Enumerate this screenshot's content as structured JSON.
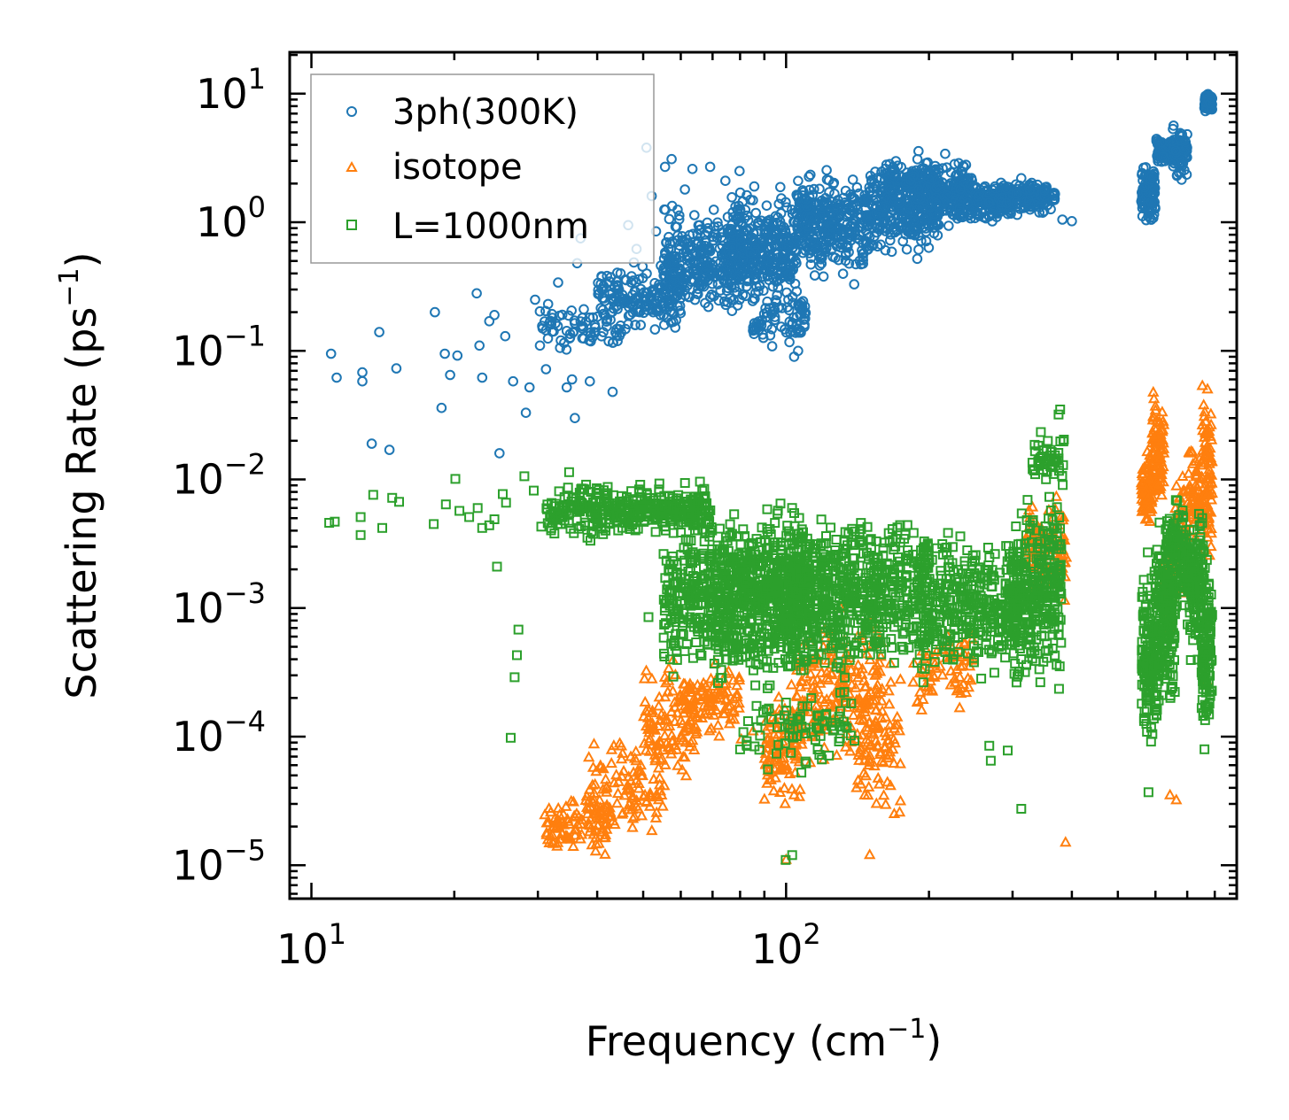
{
  "chart_data": {
    "type": "scatter",
    "xscale": "log",
    "yscale": "log",
    "xlim": [
      9,
      890
    ],
    "ylim": [
      5.5e-06,
      21
    ],
    "xlabel": "Frequency (cm",
    "xlabel_sup": "−1",
    "xlabel_end": ")",
    "ylabel": "Scattering Rate (ps",
    "ylabel_sup": "−1",
    "ylabel_end": ")",
    "x_ticks": [
      {
        "value": 10,
        "base": "10",
        "exp": "1"
      },
      {
        "value": 100,
        "base": "10",
        "exp": "2"
      }
    ],
    "y_ticks": [
      {
        "value": 10,
        "base": "10",
        "exp": "1"
      },
      {
        "value": 1,
        "base": "10",
        "exp": "0"
      },
      {
        "value": 0.1,
        "base": "10",
        "exp": "−1"
      },
      {
        "value": 0.01,
        "base": "10",
        "exp": "−2"
      },
      {
        "value": 0.001,
        "base": "10",
        "exp": "−3"
      },
      {
        "value": 0.0001,
        "base": "10",
        "exp": "−4"
      },
      {
        "value": 1e-05,
        "base": "10",
        "exp": "−5"
      }
    ],
    "legend_position": "top-left",
    "series": [
      {
        "name": "3ph(300K)",
        "marker": "circle",
        "color": "#1f77b4",
        "points": [
          [
            11,
            0.095
          ],
          [
            11.3,
            0.062
          ],
          [
            12.8,
            0.068
          ],
          [
            12.8,
            0.058
          ],
          [
            13.4,
            0.019
          ],
          [
            13.9,
            0.14
          ],
          [
            14.6,
            0.017
          ],
          [
            15.1,
            0.073
          ],
          [
            18.2,
            0.2
          ],
          [
            18.8,
            0.036
          ],
          [
            19.1,
            0.095
          ],
          [
            19.6,
            0.065
          ],
          [
            20.3,
            0.092
          ],
          [
            22.3,
            0.28
          ],
          [
            22.6,
            0.11
          ],
          [
            22.9,
            0.062
          ],
          [
            23.7,
            0.17
          ],
          [
            24.3,
            0.19
          ],
          [
            24.9,
            0.016
          ],
          [
            25.6,
            0.13
          ],
          [
            26.6,
            0.058
          ],
          [
            28.3,
            0.033
          ],
          [
            28.8,
            0.052
          ],
          [
            29.6,
            0.25
          ],
          [
            30.3,
            0.11
          ],
          [
            31.2,
            0.072
          ],
          [
            33.1,
            0.34
          ],
          [
            34.5,
            0.052
          ],
          [
            35.4,
            0.06
          ],
          [
            35.9,
            0.03
          ],
          [
            36.3,
            0.48
          ],
          [
            36.9,
            0.75
          ],
          [
            38.6,
            0.058
          ],
          [
            41.2,
            0.14
          ],
          [
            43.1,
            0.048
          ],
          [
            44.8,
            0.4
          ],
          [
            46.5,
            0.95
          ],
          [
            48.4,
            0.62
          ],
          [
            50.8,
            3.8
          ],
          [
            52.1,
            1.6
          ],
          [
            53.2,
            0.85
          ],
          [
            55.6,
            2.7
          ],
          [
            57.4,
            3.1
          ],
          [
            58.9,
            0.92
          ],
          [
            61.2,
            1.8
          ],
          [
            63.5,
            2.6
          ],
          [
            65.1,
            0.4
          ],
          [
            69.2,
            2.7
          ],
          [
            74.5,
            2.1
          ],
          [
            79.8,
            2.5
          ],
          [
            85.7,
            1.9
          ],
          [
            91.3,
            0.38
          ],
          [
            104,
            0.09
          ],
          [
            106,
            0.1
          ],
          [
            110,
            1.5
          ],
          [
            148,
            0.7
          ],
          [
            189,
            0.52
          ],
          [
            220,
            0.94
          ],
          [
            313,
            2.2
          ],
          [
            382,
            1.05
          ],
          [
            400,
            1.02
          ]
        ],
        "bands": [
          {
            "x": [
              30,
              45
            ],
            "y": [
              0.09,
              0.25
            ],
            "n": 70
          },
          {
            "x": [
              40,
              60
            ],
            "y": [
              0.12,
              0.6
            ],
            "n": 170
          },
          {
            "x": [
              55,
              80
            ],
            "y": [
              0.15,
              1.6
            ],
            "n": 280
          },
          {
            "x": [
              75,
              105
            ],
            "y": [
              0.2,
              2.1
            ],
            "n": 330
          },
          {
            "x": [
              85,
              110
            ],
            "y": [
              0.09,
              0.35
            ],
            "n": 80
          },
          {
            "x": [
              105,
              150
            ],
            "y": [
              0.3,
              3.0
            ],
            "n": 340
          },
          {
            "x": [
              150,
              210
            ],
            "y": [
              0.5,
              3.5
            ],
            "n": 300
          },
          {
            "x": [
              160,
              250
            ],
            "y": [
              1.0,
              3.8
            ],
            "n": 210
          },
          {
            "x": [
              205,
              300
            ],
            "y": [
              0.9,
              2.3
            ],
            "n": 220
          },
          {
            "x": [
              280,
              370
            ],
            "y": [
              1.1,
              2.2
            ],
            "n": 160
          },
          {
            "x": [
              560,
              600
            ],
            "y": [
              0.9,
              3.2
            ],
            "n": 100
          },
          {
            "x": [
              600,
              650
            ],
            "y": [
              2.5,
              5.0
            ],
            "n": 60
          },
          {
            "x": [
              650,
              700
            ],
            "y": [
              2.0,
              6.0
            ],
            "n": 80
          },
          {
            "x": [
              760,
              790
            ],
            "y": [
              7.0,
              10.5
            ],
            "n": 60
          }
        ]
      },
      {
        "name": "isotope",
        "marker": "triangle",
        "color": "#ff7f0e",
        "points": [
          [
            58.3,
            0.00013
          ],
          [
            61.2,
            0.00011
          ],
          [
            66.1,
            0.00015
          ],
          [
            72.3,
            0.0001
          ],
          [
            80.5,
            9.5e-05
          ],
          [
            85.2,
            0.00011
          ],
          [
            100,
            1.1e-05
          ],
          [
            104,
            3.5e-05
          ],
          [
            150,
            1.2e-05
          ],
          [
            155,
            3e-05
          ],
          [
            169,
            2.5e-05
          ],
          [
            193,
            0.00016
          ],
          [
            388,
            1.5e-05
          ],
          [
            644,
            3.5e-05
          ],
          [
            664,
            3.2e-05
          ],
          [
            770,
            0.00027
          ]
        ],
        "bands": [
          {
            "x": [
              31,
              42
            ],
            "y": [
              1e-05,
              4e-05
            ],
            "n": 90
          },
          {
            "x": [
              38,
              55
            ],
            "y": [
              1e-05,
              0.00013
            ],
            "n": 120
          },
          {
            "x": [
              50,
              65
            ],
            "y": [
              3e-05,
              0.00055
            ],
            "n": 110
          },
          {
            "x": [
              60,
              80
            ],
            "y": [
              8e-05,
              0.00045
            ],
            "n": 90
          },
          {
            "x": [
              90,
              108
            ],
            "y": [
              2e-05,
              0.0003
            ],
            "n": 110
          },
          {
            "x": [
              105,
              160
            ],
            "y": [
              4e-05,
              0.0013
            ],
            "n": 200
          },
          {
            "x": [
              140,
              175
            ],
            "y": [
              2e-05,
              0.0005
            ],
            "n": 90
          },
          {
            "x": [
              185,
              250
            ],
            "y": [
              0.00014,
              0.0009
            ],
            "n": 70
          },
          {
            "x": [
              320,
              390
            ],
            "y": [
              0.0008,
              0.009
            ],
            "n": 100
          },
          {
            "x": [
              560,
              590
            ],
            "y": [
              0.0035,
              0.02
            ],
            "n": 80
          },
          {
            "x": [
              590,
              625
            ],
            "y": [
              0.005,
              0.06
            ],
            "n": 90
          },
          {
            "x": [
              625,
              650
            ],
            "y": [
              0.0005,
              0.0045
            ],
            "n": 40
          },
          {
            "x": [
              660,
              700
            ],
            "y": [
              0.001,
              0.02
            ],
            "n": 50
          },
          {
            "x": [
              700,
              750
            ],
            "y": [
              0.002,
              0.03
            ],
            "n": 60
          },
          {
            "x": [
              750,
              790
            ],
            "y": [
              0.0015,
              0.09
            ],
            "n": 90
          }
        ]
      },
      {
        "name": "L=1000nm",
        "marker": "square",
        "color": "#2ca02c",
        "points": [
          [
            10.9,
            0.0046
          ],
          [
            11.2,
            0.0047
          ],
          [
            12.7,
            0.0051
          ],
          [
            12.7,
            0.0037
          ],
          [
            13.5,
            0.0076
          ],
          [
            14.1,
            0.0042
          ],
          [
            14.8,
            0.0072
          ],
          [
            15.3,
            0.0067
          ],
          [
            18.1,
            0.0045
          ],
          [
            19.2,
            0.0064
          ],
          [
            20.1,
            0.0101
          ],
          [
            20.5,
            0.0057
          ],
          [
            21.5,
            0.0051
          ],
          [
            22.4,
            0.006
          ],
          [
            22.9,
            0.0042
          ],
          [
            23.7,
            0.0044
          ],
          [
            24.3,
            0.0049
          ],
          [
            24.6,
            0.0021
          ],
          [
            25.3,
            0.0077
          ],
          [
            25.7,
            0.0066
          ],
          [
            26.3,
            9.8e-05
          ],
          [
            26.8,
            0.00029
          ],
          [
            27.1,
            0.00043
          ],
          [
            27.3,
            0.00068
          ],
          [
            28.1,
            0.0106
          ],
          [
            29.4,
            0.0082
          ],
          [
            30.5,
            0.0043
          ],
          [
            32.5,
            0.0038
          ],
          [
            34.9,
            0.0114
          ],
          [
            37.1,
            0.0085
          ],
          [
            49.3,
            0.0091
          ],
          [
            51.3,
            0.00085
          ],
          [
            99.8,
            1.1e-05
          ],
          [
            103,
            1.2e-05
          ],
          [
            268,
            8.5e-05
          ],
          [
            270,
            6.5e-05
          ],
          [
            293,
            7.8e-05
          ],
          [
            313,
            2.75e-05
          ],
          [
            375,
            0.032
          ],
          [
            378,
            0.035
          ],
          [
            580,
            3.7e-05
          ],
          [
            645,
            0.0002
          ]
        ],
        "bands": [
          {
            "x": [
              31,
              70
            ],
            "y": [
              0.0032,
              0.0105
            ],
            "n": 380
          },
          {
            "x": [
              55,
              110
            ],
            "y": [
              0.0002,
              0.0085
            ],
            "n": 550
          },
          {
            "x": [
              70,
              160
            ],
            "y": [
              0.00018,
              0.007
            ],
            "n": 520
          },
          {
            "x": [
              100,
              200
            ],
            "y": [
              0.0002,
              0.008
            ],
            "n": 450
          },
          {
            "x": [
              80,
              140
            ],
            "y": [
              5e-05,
              0.0003
            ],
            "n": 80
          },
          {
            "x": [
              190,
              310
            ],
            "y": [
              0.0002,
              0.0055
            ],
            "n": 380
          },
          {
            "x": [
              300,
              380
            ],
            "y": [
              0.0002,
              0.0095
            ],
            "n": 300
          },
          {
            "x": [
              330,
              385
            ],
            "y": [
              0.008,
              0.025
            ],
            "n": 50
          },
          {
            "x": [
              560,
              610
            ],
            "y": [
              6e-05,
              0.0035
            ],
            "n": 160
          },
          {
            "x": [
              600,
              660
            ],
            "y": [
              0.00012,
              0.0065
            ],
            "n": 180
          },
          {
            "x": [
              630,
              700
            ],
            "y": [
              0.0008,
              0.009
            ],
            "n": 120
          },
          {
            "x": [
              700,
              760
            ],
            "y": [
              0.0003,
              0.008
            ],
            "n": 140
          },
          {
            "x": [
              750,
              790
            ],
            "y": [
              7e-05,
              0.003
            ],
            "n": 120
          }
        ]
      }
    ]
  }
}
